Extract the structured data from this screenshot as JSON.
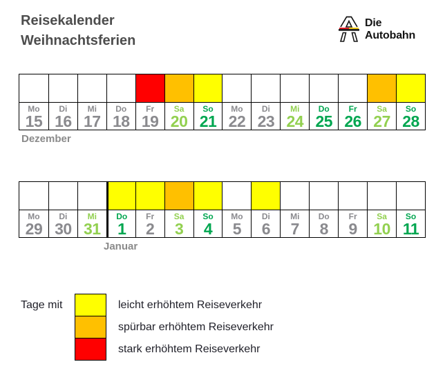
{
  "header": {
    "title_line1": "Reisekalender",
    "title_line2": "Weihnachtsferien",
    "logo_line1": "Die",
    "logo_line2": "Autobahn"
  },
  "colors": {
    "level_none": "#ffffff",
    "level_light": "#ffff00",
    "level_medium": "#ffc000",
    "level_high": "#ff0000",
    "text_gray": "#8a8a8e",
    "text_light_green": "#92d050",
    "text_dark_green": "#00a650",
    "title_gray": "#4d4d4d",
    "month_label_gray": "#8a8a8a",
    "legend_text": "#1f1f28",
    "border": "#000000",
    "flag_red": "#e30613",
    "flag_gold": "#f0c300",
    "logo_black": "#141414"
  },
  "chart_data": {
    "type": "heatmap",
    "title": "Reisekalender Weihnachtsferien",
    "legend_position": "bottom-left",
    "legend_prefix": "Tage mit",
    "legend": [
      {
        "level": "light",
        "color": "#ffff00",
        "label": "leicht erhöhtem Reiseverkehr"
      },
      {
        "level": "medium",
        "color": "#ffc000",
        "label": "spürbar erhöhtem Reiseverkehr"
      },
      {
        "level": "high",
        "color": "#ff0000",
        "label": "stark erhöhtem Reiseverkehr"
      }
    ],
    "rows": [
      {
        "month_label": "Dezember",
        "days": [
          {
            "weekday": "Mo",
            "date": "15",
            "traffic": "none",
            "text": "gray"
          },
          {
            "weekday": "Di",
            "date": "16",
            "traffic": "none",
            "text": "gray"
          },
          {
            "weekday": "Mi",
            "date": "17",
            "traffic": "none",
            "text": "gray"
          },
          {
            "weekday": "Do",
            "date": "18",
            "traffic": "none",
            "text": "gray"
          },
          {
            "weekday": "Fr",
            "date": "19",
            "traffic": "high",
            "text": "gray"
          },
          {
            "weekday": "Sa",
            "date": "20",
            "traffic": "medium",
            "text": "light_green"
          },
          {
            "weekday": "So",
            "date": "21",
            "traffic": "light",
            "text": "dark_green"
          },
          {
            "weekday": "Mo",
            "date": "22",
            "traffic": "none",
            "text": "gray"
          },
          {
            "weekday": "Di",
            "date": "23",
            "traffic": "none",
            "text": "gray"
          },
          {
            "weekday": "Mi",
            "date": "24",
            "traffic": "none",
            "text": "light_green"
          },
          {
            "weekday": "Do",
            "date": "25",
            "traffic": "none",
            "text": "dark_green"
          },
          {
            "weekday": "Fr",
            "date": "26",
            "traffic": "none",
            "text": "dark_green"
          },
          {
            "weekday": "Sa",
            "date": "27",
            "traffic": "medium",
            "text": "light_green"
          },
          {
            "weekday": "So",
            "date": "28",
            "traffic": "light",
            "text": "dark_green"
          }
        ]
      },
      {
        "month_label": "Januar",
        "days": [
          {
            "weekday": "Mo",
            "date": "29",
            "traffic": "none",
            "text": "gray"
          },
          {
            "weekday": "Di",
            "date": "30",
            "traffic": "none",
            "text": "gray"
          },
          {
            "weekday": "Mi",
            "date": "31",
            "traffic": "none",
            "text": "light_green"
          },
          {
            "weekday": "Do",
            "date": "1",
            "traffic": "light",
            "text": "dark_green",
            "month_start": true
          },
          {
            "weekday": "Fr",
            "date": "2",
            "traffic": "light",
            "text": "gray"
          },
          {
            "weekday": "Sa",
            "date": "3",
            "traffic": "medium",
            "text": "light_green"
          },
          {
            "weekday": "So",
            "date": "4",
            "traffic": "light",
            "text": "dark_green"
          },
          {
            "weekday": "Mo",
            "date": "5",
            "traffic": "none",
            "text": "gray"
          },
          {
            "weekday": "Di",
            "date": "6",
            "traffic": "light",
            "text": "gray"
          },
          {
            "weekday": "Mi",
            "date": "7",
            "traffic": "none",
            "text": "gray"
          },
          {
            "weekday": "Do",
            "date": "8",
            "traffic": "none",
            "text": "gray"
          },
          {
            "weekday": "Fr",
            "date": "9",
            "traffic": "none",
            "text": "gray"
          },
          {
            "weekday": "Sa",
            "date": "10",
            "traffic": "none",
            "text": "light_green"
          },
          {
            "weekday": "So",
            "date": "11",
            "traffic": "none",
            "text": "dark_green"
          }
        ]
      }
    ]
  }
}
